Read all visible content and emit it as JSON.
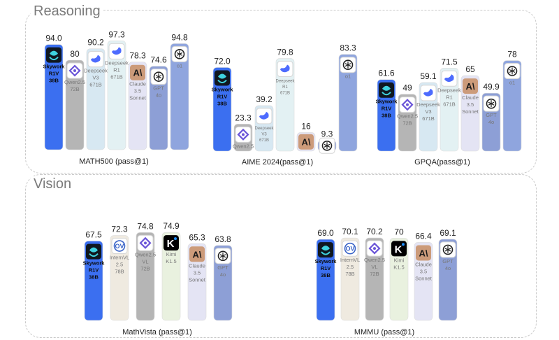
{
  "sections": [
    {
      "title": "Reasoning"
    },
    {
      "title": "Vision"
    }
  ],
  "chart_data": [
    {
      "type": "bar",
      "title": "MATH500 (pass@1)",
      "categories": [
        "Skywork R1V 38B",
        "Qwen2.5 72B",
        "Deepseek V3 671B",
        "Deepseek R1 671B",
        "Claude 3.5 Sonnet",
        "GPT 4o",
        "o1"
      ],
      "values": [
        94.0,
        80,
        90.2,
        97.3,
        78.3,
        74.6,
        94.8
      ],
      "value_labels": [
        "94.0",
        "80",
        "90.2",
        "97.3",
        "78.3",
        "74.6",
        "94.8"
      ],
      "bar_labels": [
        [
          "Skywork",
          "R1V",
          "38B"
        ],
        [
          "Qwen2.5",
          "72B"
        ],
        [
          "Deepseek",
          "V3",
          "671B"
        ],
        [
          "Deepseek",
          "R1",
          "671B"
        ],
        [
          "Claude",
          "3.5",
          "Sonnet"
        ],
        [
          "GPT",
          "4o"
        ],
        [
          "o1"
        ]
      ],
      "icons": [
        "skywork-logo",
        "qwen-logo",
        "deepseek-logo",
        "deepseek-logo",
        "claude-logo",
        "openai-logo",
        "openai-logo"
      ],
      "colors": [
        "#3b6ff0",
        "#b5b5b5",
        "#d7e8f2",
        "#e3f1f3",
        "#e4e4f4",
        "#8d9fd6",
        "#8fa5de"
      ],
      "ylim": [
        0,
        100
      ]
    },
    {
      "type": "bar",
      "title": "AIME 2024(pass@1)",
      "categories": [
        "Skywork R1V 38B",
        "Qwen2.5 72B",
        "Deepseek V3 671B",
        "Deepseek R1 671B",
        "Claude",
        "GPT 4o",
        "o1"
      ],
      "values": [
        72.0,
        23.3,
        39.2,
        79.8,
        16,
        9.3,
        83.3
      ],
      "value_labels": [
        "72.0",
        "23.3",
        "39.2",
        "79.8",
        "16",
        "9.3",
        "83.3"
      ],
      "bar_labels": [
        [
          "Skywork",
          "R1V",
          "38B"
        ],
        [
          "Qwen2.5",
          "72B"
        ],
        [
          "Deepseek",
          "V3",
          "671B"
        ],
        [
          "Deepseek",
          "R1",
          "671B"
        ],
        [],
        [
          "4o"
        ],
        [
          "o1"
        ]
      ],
      "icons": [
        "skywork-logo",
        "qwen-logo",
        "deepseek-logo",
        "deepseek-logo",
        "claude-logo",
        "openai-logo",
        "openai-logo"
      ],
      "colors": [
        "#3b6ff0",
        "#b5b5b5",
        "#d7e8f2",
        "#e3f1f3",
        "#e4e4f4",
        "#8d9fd6",
        "#8fa5de"
      ],
      "ylim": [
        0,
        100
      ]
    },
    {
      "type": "bar",
      "title": "GPQA(pass@1)",
      "categories": [
        "Skywork R1V 38B",
        "Qwen2.5 72B",
        "Deepseek V3 671B",
        "Deepseek R1 671B",
        "Claude 3.5 Sonnet",
        "GPT 4o",
        "o1"
      ],
      "values": [
        61.6,
        49,
        59.1,
        71.5,
        65,
        49.9,
        78
      ],
      "value_labels": [
        "61.6",
        "49",
        "59.1",
        "71.5",
        "65",
        "49.9",
        "78"
      ],
      "bar_labels": [
        [
          "Skywork",
          "R1V",
          "38B"
        ],
        [
          "Qwen2.5",
          "72B"
        ],
        [
          "Deepseek",
          "V3",
          "671B"
        ],
        [
          "Deepseek",
          "R1",
          "671B"
        ],
        [
          "Claude",
          "3.5",
          "Sonnet"
        ],
        [
          "GPT",
          "4o"
        ],
        [
          "o1"
        ]
      ],
      "icons": [
        "skywork-logo",
        "qwen-logo",
        "deepseek-logo",
        "deepseek-logo",
        "claude-logo",
        "openai-logo",
        "openai-logo"
      ],
      "colors": [
        "#3b6ff0",
        "#b5b5b5",
        "#d7e8f2",
        "#e3f1f3",
        "#e4e4f4",
        "#8d9fd6",
        "#8fa5de"
      ],
      "ylim": [
        0,
        100
      ]
    },
    {
      "type": "bar",
      "title": "MathVista (pass@1)",
      "categories": [
        "Skywork R1V 38B",
        "InternVL 2.5 78B",
        "Qwen2.5 VL 72B",
        "Kimi K1.5",
        "Claude 3.5 Sonnet",
        "GPT 4o"
      ],
      "values": [
        67.5,
        72.3,
        74.8,
        74.9,
        65.3,
        63.8
      ],
      "value_labels": [
        "67.5",
        "72.3",
        "74.8",
        "74.9",
        "65.3",
        "63.8"
      ],
      "bar_labels": [
        [
          "Skywork",
          "R1V",
          "38B"
        ],
        [
          "InternVL",
          "2.5",
          "78B"
        ],
        [
          "Qwen2.5",
          "VL",
          "72B"
        ],
        [
          "Kimi",
          "K1.5"
        ],
        [
          "Claude",
          "3.5",
          "Sonnet"
        ],
        [
          "GPT",
          "4o"
        ]
      ],
      "icons": [
        "skywork-logo",
        "internvl-logo",
        "qwen-logo",
        "kimi-logo",
        "claude-logo",
        "openai-logo"
      ],
      "colors": [
        "#3b6ff0",
        "#efeae0",
        "#b5b5b5",
        "#e9f1df",
        "#e4e4f4",
        "#8d9fd6"
      ],
      "ylim": [
        0,
        100
      ]
    },
    {
      "type": "bar",
      "title": "MMMU (pass@1)",
      "categories": [
        "Skywork R1V 38B",
        "InternVL 2.5 78B",
        "Qwen2.5 VL 72B",
        "Kimi K1.5",
        "Claude 3.5 Sonnet",
        "GPT 4o"
      ],
      "values": [
        69.0,
        70.1,
        70.2,
        70,
        66.4,
        69.1
      ],
      "value_labels": [
        "69.0",
        "70.1",
        "70.2",
        "70",
        "66.4",
        "69.1"
      ],
      "bar_labels": [
        [
          "Skywork",
          "R1V",
          "38B"
        ],
        [
          "InternVL",
          "2.5",
          "78B"
        ],
        [
          "Qwen2.5",
          "VL",
          "72B"
        ],
        [
          "Kimi",
          "K1.5"
        ],
        [
          "Claude",
          "3.5",
          "Sonnet"
        ],
        [
          "GPT",
          "4o"
        ]
      ],
      "icons": [
        "skywork-logo",
        "internvl-logo",
        "qwen-logo",
        "kimi-logo",
        "claude-logo",
        "openai-logo"
      ],
      "colors": [
        "#3b6ff0",
        "#efeae0",
        "#b5b5b5",
        "#e9f1df",
        "#e4e4f4",
        "#8d9fd6"
      ],
      "ylim": [
        0,
        100
      ]
    }
  ]
}
